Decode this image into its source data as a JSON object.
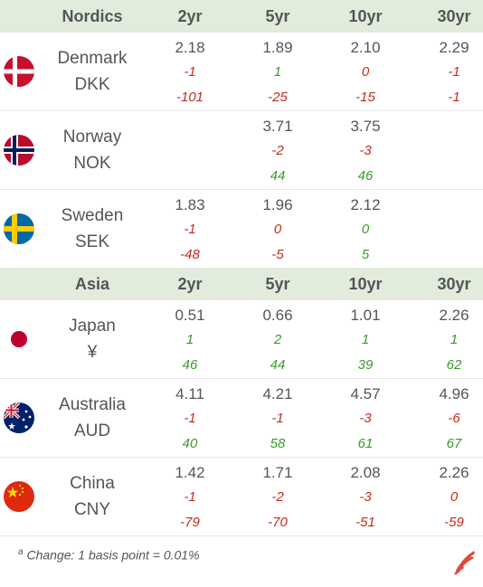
{
  "sections": [
    {
      "region": "Nordics",
      "columns": [
        "2yr",
        "5yr",
        "10yr",
        "30yr"
      ],
      "rows": [
        {
          "country": "Denmark",
          "code": "DKK",
          "flag": "denmark-flag-icon",
          "cells": [
            {
              "v": "2.18",
              "c1": "-1",
              "c1s": "red",
              "c2": "-101",
              "c2s": "red"
            },
            {
              "v": "1.89",
              "c1": "1",
              "c1s": "green",
              "c2": "-25",
              "c2s": "red"
            },
            {
              "v": "2.10",
              "c1": "0",
              "c1s": "red",
              "c2": "-15",
              "c2s": "red"
            },
            {
              "v": "2.29",
              "c1": "-1",
              "c1s": "red",
              "c2": "-1",
              "c2s": "red"
            }
          ]
        },
        {
          "country": "Norway",
          "code": "NOK",
          "flag": "norway-flag-icon",
          "cells": [
            {
              "v": "",
              "c1": "",
              "c1s": "red",
              "c2": "",
              "c2s": "red"
            },
            {
              "v": "3.71",
              "c1": "-2",
              "c1s": "red",
              "c2": "44",
              "c2s": "green"
            },
            {
              "v": "3.75",
              "c1": "-3",
              "c1s": "red",
              "c2": "46",
              "c2s": "green"
            },
            {
              "v": "",
              "c1": "",
              "c1s": "red",
              "c2": "",
              "c2s": "red"
            }
          ]
        },
        {
          "country": "Sweden",
          "code": "SEK",
          "flag": "sweden-flag-icon",
          "cells": [
            {
              "v": "1.83",
              "c1": "-1",
              "c1s": "red",
              "c2": "-48",
              "c2s": "red"
            },
            {
              "v": "1.96",
              "c1": "0",
              "c1s": "red",
              "c2": "-5",
              "c2s": "red"
            },
            {
              "v": "2.12",
              "c1": "0",
              "c1s": "green",
              "c2": "5",
              "c2s": "green"
            },
            {
              "v": "",
              "c1": "",
              "c1s": "red",
              "c2": "",
              "c2s": "red"
            }
          ]
        }
      ]
    },
    {
      "region": "Asia",
      "columns": [
        "2yr",
        "5yr",
        "10yr",
        "30yr"
      ],
      "rows": [
        {
          "country": "Japan",
          "code": "¥",
          "flag": "japan-flag-icon",
          "cells": [
            {
              "v": "0.51",
              "c1": "1",
              "c1s": "green",
              "c2": "46",
              "c2s": "green"
            },
            {
              "v": "0.66",
              "c1": "2",
              "c1s": "green",
              "c2": "44",
              "c2s": "green"
            },
            {
              "v": "1.01",
              "c1": "1",
              "c1s": "green",
              "c2": "39",
              "c2s": "green"
            },
            {
              "v": "2.26",
              "c1": "1",
              "c1s": "green",
              "c2": "62",
              "c2s": "green"
            }
          ]
        },
        {
          "country": "Australia",
          "code": "AUD",
          "flag": "australia-flag-icon",
          "cells": [
            {
              "v": "4.11",
              "c1": "-1",
              "c1s": "red",
              "c2": "40",
              "c2s": "green"
            },
            {
              "v": "4.21",
              "c1": "-1",
              "c1s": "red",
              "c2": "58",
              "c2s": "green"
            },
            {
              "v": "4.57",
              "c1": "-3",
              "c1s": "red",
              "c2": "61",
              "c2s": "green"
            },
            {
              "v": "4.96",
              "c1": "-6",
              "c1s": "red",
              "c2": "67",
              "c2s": "green"
            }
          ]
        },
        {
          "country": "China",
          "code": "CNY",
          "flag": "china-flag-icon",
          "cells": [
            {
              "v": "1.42",
              "c1": "-1",
              "c1s": "red",
              "c2": "-79",
              "c2s": "red"
            },
            {
              "v": "1.71",
              "c1": "-2",
              "c1s": "red",
              "c2": "-70",
              "c2s": "red"
            },
            {
              "v": "2.08",
              "c1": "-3",
              "c1s": "red",
              "c2": "-51",
              "c2s": "red"
            },
            {
              "v": "2.26",
              "c1": "0",
              "c1s": "red",
              "c2": "-59",
              "c2s": "red"
            }
          ]
        }
      ]
    }
  ],
  "footnote": {
    "marker": "a",
    "text": "Change: 1 basis point = 0.01%"
  },
  "logo": "brand-logo-icon"
}
